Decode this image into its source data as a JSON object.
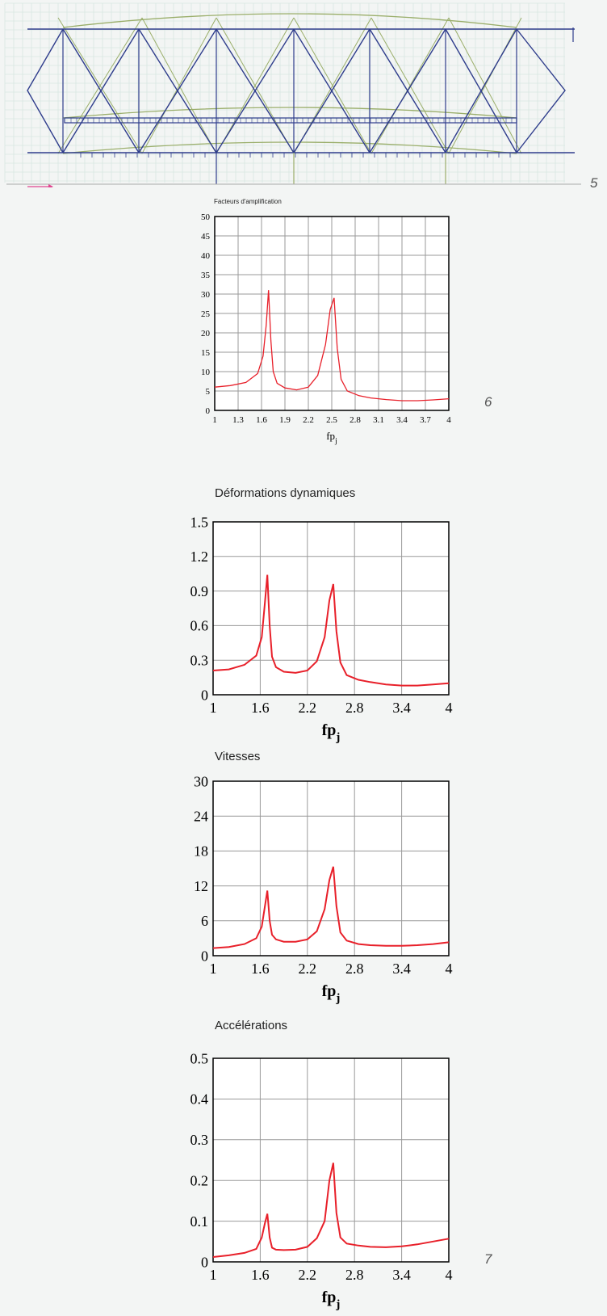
{
  "figures": {
    "five": "5",
    "six": "6",
    "seven": "7"
  },
  "colors": {
    "curve": "#e8202a",
    "grid": "#9a9a9a",
    "axis": "#000000",
    "truss_blue": "#2f3d8c",
    "truss_green": "#9aae6a",
    "grid_bg": "#d8e6e2"
  },
  "chart_data": [
    {
      "id": "amplification",
      "type": "line",
      "title": "Facteurs d'amplification",
      "xlabel": "fp",
      "xlabel_sub": "j",
      "xlim": [
        1,
        4
      ],
      "ylim": [
        0,
        50
      ],
      "x_ticks": [
        "1",
        "1.3",
        "1.6",
        "1.9",
        "2.2",
        "2.5",
        "2.8",
        "3.1",
        "3.4",
        "3.7",
        "4"
      ],
      "y_ticks": [
        "0",
        "5",
        "10",
        "15",
        "20",
        "25",
        "30",
        "35",
        "40",
        "45",
        "50"
      ],
      "series": [
        {
          "x": [
            1.0,
            1.2,
            1.4,
            1.55,
            1.62,
            1.66,
            1.69,
            1.72,
            1.75,
            1.8,
            1.9,
            2.05,
            2.2,
            2.32,
            2.42,
            2.48,
            2.53,
            2.57,
            2.62,
            2.7,
            2.85,
            3.0,
            3.2,
            3.4,
            3.6,
            3.8,
            4.0
          ],
          "y": [
            6.0,
            6.4,
            7.2,
            9.5,
            14.0,
            22.0,
            31.0,
            18.0,
            10.0,
            7.0,
            5.8,
            5.3,
            6.0,
            9.0,
            17.0,
            26.0,
            29.0,
            16.0,
            8.0,
            5.0,
            3.8,
            3.2,
            2.8,
            2.5,
            2.5,
            2.7,
            3.0
          ]
        }
      ]
    },
    {
      "id": "deformations",
      "type": "line",
      "title": "Déformations dynamiques",
      "xlabel": "fp",
      "xlabel_sub": "j",
      "xlim": [
        1,
        4
      ],
      "ylim": [
        0,
        1.5
      ],
      "x_ticks": [
        "1",
        "1.6",
        "2.2",
        "2.8",
        "3.4",
        "4"
      ],
      "y_ticks": [
        "0",
        "0.3",
        "0.6",
        "0.9",
        "1.2",
        "1.5"
      ],
      "series": [
        {
          "x": [
            1.0,
            1.2,
            1.4,
            1.55,
            1.62,
            1.66,
            1.69,
            1.72,
            1.75,
            1.8,
            1.9,
            2.05,
            2.2,
            2.32,
            2.42,
            2.48,
            2.53,
            2.57,
            2.62,
            2.7,
            2.85,
            3.0,
            3.2,
            3.4,
            3.6,
            3.8,
            4.0
          ],
          "y": [
            0.21,
            0.22,
            0.26,
            0.34,
            0.5,
            0.8,
            1.04,
            0.6,
            0.33,
            0.24,
            0.2,
            0.19,
            0.21,
            0.29,
            0.5,
            0.82,
            0.96,
            0.55,
            0.28,
            0.17,
            0.13,
            0.11,
            0.09,
            0.08,
            0.08,
            0.09,
            0.1
          ]
        }
      ]
    },
    {
      "id": "vitesses",
      "type": "line",
      "title": "Vitesses",
      "xlabel": "fp",
      "xlabel_sub": "j",
      "xlim": [
        1,
        4
      ],
      "ylim": [
        0,
        30
      ],
      "x_ticks": [
        "1",
        "1.6",
        "2.2",
        "2.8",
        "3.4",
        "4"
      ],
      "y_ticks": [
        "0",
        "6",
        "12",
        "18",
        "24",
        "30"
      ],
      "series": [
        {
          "x": [
            1.0,
            1.2,
            1.4,
            1.55,
            1.62,
            1.66,
            1.69,
            1.72,
            1.75,
            1.8,
            1.9,
            2.05,
            2.2,
            2.32,
            2.42,
            2.48,
            2.53,
            2.57,
            2.62,
            2.7,
            2.85,
            3.0,
            3.2,
            3.4,
            3.6,
            3.8,
            4.0
          ],
          "y": [
            1.3,
            1.5,
            2.0,
            3.0,
            5.0,
            8.5,
            11.2,
            6.0,
            3.6,
            2.8,
            2.4,
            2.4,
            2.8,
            4.2,
            8.0,
            13.0,
            15.3,
            8.5,
            4.0,
            2.6,
            2.0,
            1.8,
            1.7,
            1.7,
            1.8,
            2.0,
            2.3
          ]
        }
      ]
    },
    {
      "id": "accelerations",
      "type": "line",
      "title": "Accélérations",
      "xlabel": "fp",
      "xlabel_sub": "j",
      "xlim": [
        1,
        4
      ],
      "ylim": [
        0,
        0.5
      ],
      "x_ticks": [
        "1",
        "1.6",
        "2.2",
        "2.8",
        "3.4",
        "4"
      ],
      "y_ticks": [
        "0",
        "0.1",
        "0.2",
        "0.3",
        "0.4",
        "0.5"
      ],
      "series": [
        {
          "x": [
            1.0,
            1.2,
            1.4,
            1.55,
            1.62,
            1.66,
            1.69,
            1.72,
            1.75,
            1.8,
            1.9,
            2.05,
            2.2,
            2.32,
            2.42,
            2.48,
            2.53,
            2.57,
            2.62,
            2.7,
            2.85,
            3.0,
            3.2,
            3.4,
            3.6,
            3.8,
            4.0
          ],
          "y": [
            0.012,
            0.016,
            0.022,
            0.032,
            0.06,
            0.095,
            0.118,
            0.06,
            0.035,
            0.03,
            0.029,
            0.03,
            0.037,
            0.058,
            0.1,
            0.2,
            0.243,
            0.12,
            0.06,
            0.045,
            0.04,
            0.037,
            0.036,
            0.038,
            0.043,
            0.05,
            0.057
          ]
        }
      ]
    }
  ]
}
